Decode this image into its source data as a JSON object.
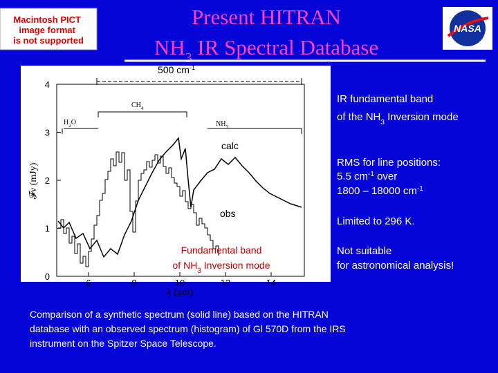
{
  "header": {
    "title_line1": "Present HITRAN",
    "title_line2": [
      "NH",
      "3",
      " IR Spectral Database"
    ]
  },
  "placeholder": [
    "Macintosh PICT",
    "image format",
    "is not supported"
  ],
  "logo": "NASA",
  "figure": {
    "span_label": [
      "500 cm",
      "-1"
    ],
    "xticks": [
      "6",
      "8",
      "10",
      "12",
      "14"
    ],
    "yticks": [
      "0",
      "1",
      "2",
      "3",
      "4"
    ],
    "xlabel": "λ (μm)",
    "ylabel": "𝓕ν (mJy)",
    "bands": {
      "ch4": [
        "CH",
        "4"
      ],
      "h2o": [
        "H",
        "2",
        "O"
      ],
      "nh3": [
        "NH",
        "3"
      ]
    },
    "calc": "calc",
    "obs": "obs",
    "band_note": [
      "Fundamental band",
      "of NH",
      "3",
      " Inversion mode"
    ]
  },
  "notes": {
    "fundamental": [
      "IR fundamental band",
      " of the NH",
      "3",
      " Inversion mode"
    ],
    "rms": [
      "RMS for line positions:",
      " 5.5 cm",
      "-1",
      " over",
      "1800 – 18000 cm",
      "-1"
    ],
    "limit": "Limited to 296 K.",
    "suitability": [
      "Not suitable",
      "for astronomical analysis!"
    ]
  },
  "caption": [
    "Comparison of a synthetic spectrum (solid line) based on the HITRAN",
    "database with an observed spectrum (histogram) of Gl 570D from the IRS",
    "instrument on the Spitzer Space Telescope."
  ]
}
